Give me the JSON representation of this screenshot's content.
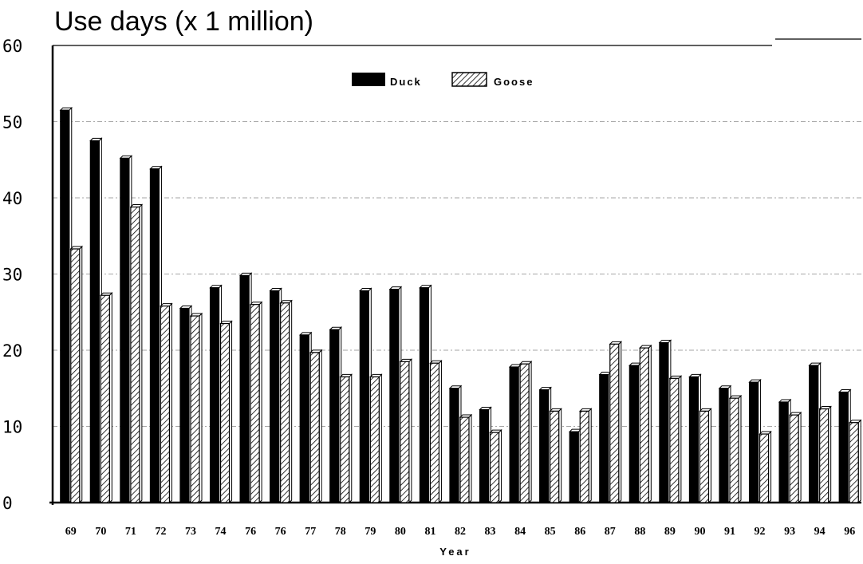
{
  "chart_data": {
    "type": "bar",
    "title": "Use days (x 1 million)",
    "xlabel": "Year",
    "ylabel": "",
    "ylim": [
      0,
      60
    ],
    "yticks": [
      0,
      10,
      20,
      30,
      40,
      50,
      60
    ],
    "grid": true,
    "legend_position": "top-center",
    "categories": [
      "69",
      "70",
      "71",
      "72",
      "73",
      "74",
      "76",
      "76",
      "77",
      "78",
      "79",
      "80",
      "81",
      "82",
      "83",
      "84",
      "85",
      "86",
      "87",
      "88",
      "89",
      "90",
      "91",
      "92",
      "93",
      "94",
      "96"
    ],
    "series": [
      {
        "name": "Duck",
        "pattern": "solid",
        "color": "#000000",
        "values": [
          51.5,
          47.5,
          45.2,
          43.8,
          25.5,
          28.2,
          29.8,
          27.8,
          22,
          22.7,
          27.8,
          28,
          28.2,
          15,
          12.2,
          17.8,
          14.8,
          9.3,
          16.8,
          18,
          21,
          16.5,
          15,
          15.8,
          13.2,
          18,
          14.5
        ]
      },
      {
        "name": "Goose",
        "pattern": "hatched",
        "color": "#000000",
        "values": [
          33.3,
          27.2,
          38.8,
          25.8,
          24.5,
          23.5,
          26,
          26.2,
          19.7,
          16.5,
          16.5,
          18.5,
          18.3,
          11.2,
          9.2,
          18.2,
          12,
          12,
          20.8,
          20.3,
          16.3,
          12,
          13.7,
          9,
          11.5,
          12.3,
          10.5
        ]
      }
    ]
  }
}
